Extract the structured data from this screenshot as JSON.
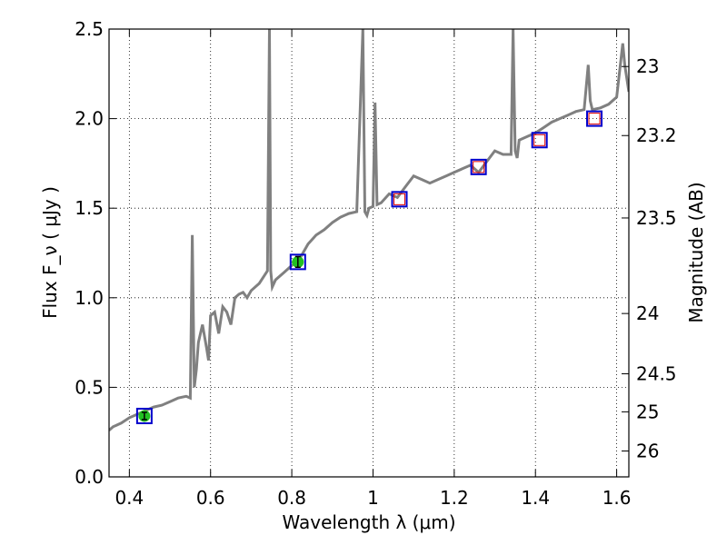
{
  "chart_data": {
    "type": "line",
    "title": "",
    "xlabel": "Wavelength  λ (μm)",
    "ylabel": "Flux  F_ν  ( μJy )",
    "ylabel_right": "Magnitude (AB)",
    "xlim": [
      0.35,
      1.63
    ],
    "ylim": [
      0.0,
      2.5
    ],
    "grid": true,
    "x_ticks": [
      {
        "value": 0.4,
        "label": "0.4"
      },
      {
        "value": 0.6,
        "label": "0.6"
      },
      {
        "value": 0.8,
        "label": "0.8"
      },
      {
        "value": 1.0,
        "label": "1"
      },
      {
        "value": 1.2,
        "label": "1.2"
      },
      {
        "value": 1.4,
        "label": "1.4"
      },
      {
        "value": 1.6,
        "label": "1.6"
      }
    ],
    "y_ticks": [
      {
        "value": 0.0,
        "label": "0.0"
      },
      {
        "value": 0.5,
        "label": "0.5"
      },
      {
        "value": 1.0,
        "label": "1.0"
      },
      {
        "value": 1.5,
        "label": "1.5"
      },
      {
        "value": 2.0,
        "label": "2.0"
      },
      {
        "value": 2.5,
        "label": "2.5"
      }
    ],
    "right_ticks": [
      {
        "value": 23,
        "label": "23"
      },
      {
        "value": 23.2,
        "label": "23.2"
      },
      {
        "value": 23.5,
        "label": "23.5"
      },
      {
        "value": 24,
        "label": "24"
      },
      {
        "value": 24.5,
        "label": "24.5"
      },
      {
        "value": 25,
        "label": "25"
      },
      {
        "value": 26,
        "label": "26"
      }
    ],
    "spectrum": {
      "color": "#808080",
      "x": [
        0.35,
        0.36,
        0.38,
        0.4,
        0.42,
        0.44,
        0.46,
        0.48,
        0.5,
        0.52,
        0.54,
        0.55,
        0.555,
        0.56,
        0.565,
        0.57,
        0.58,
        0.59,
        0.595,
        0.6,
        0.61,
        0.62,
        0.63,
        0.64,
        0.65,
        0.66,
        0.67,
        0.68,
        0.69,
        0.7,
        0.72,
        0.74,
        0.745,
        0.748,
        0.752,
        0.76,
        0.78,
        0.8,
        0.82,
        0.84,
        0.86,
        0.88,
        0.9,
        0.92,
        0.94,
        0.96,
        0.975,
        0.98,
        0.985,
        0.99,
        1.0,
        1.005,
        1.01,
        1.02,
        1.04,
        1.06,
        1.08,
        1.1,
        1.12,
        1.14,
        1.16,
        1.18,
        1.2,
        1.22,
        1.24,
        1.26,
        1.28,
        1.3,
        1.32,
        1.34,
        1.345,
        1.35,
        1.355,
        1.36,
        1.38,
        1.4,
        1.42,
        1.44,
        1.46,
        1.48,
        1.5,
        1.52,
        1.53,
        1.535,
        1.54,
        1.56,
        1.58,
        1.6,
        1.615,
        1.62,
        1.63
      ],
      "y": [
        0.26,
        0.28,
        0.3,
        0.33,
        0.35,
        0.37,
        0.39,
        0.4,
        0.42,
        0.44,
        0.45,
        0.44,
        1.35,
        0.5,
        0.6,
        0.75,
        0.85,
        0.72,
        0.65,
        0.9,
        0.92,
        0.8,
        0.95,
        0.92,
        0.85,
        1.0,
        1.02,
        1.03,
        1.0,
        1.04,
        1.08,
        1.15,
        2.5,
        1.15,
        1.06,
        1.1,
        1.14,
        1.18,
        1.22,
        1.3,
        1.35,
        1.38,
        1.42,
        1.45,
        1.47,
        1.48,
        2.5,
        1.48,
        1.46,
        1.5,
        1.51,
        2.09,
        1.52,
        1.53,
        1.58,
        1.56,
        1.62,
        1.68,
        1.66,
        1.64,
        1.66,
        1.68,
        1.7,
        1.72,
        1.74,
        1.7,
        1.76,
        1.82,
        1.8,
        1.8,
        2.5,
        1.82,
        1.78,
        1.88,
        1.9,
        1.92,
        1.95,
        1.98,
        2.0,
        2.02,
        2.04,
        2.05,
        2.3,
        2.1,
        2.05,
        2.06,
        2.08,
        2.12,
        2.42,
        2.3,
        2.15
      ]
    },
    "photometry": [
      {
        "x": 0.437,
        "y": 0.34,
        "err": 0.02,
        "observed": true
      },
      {
        "x": 0.815,
        "y": 1.2,
        "err": 0.03,
        "observed": true
      },
      {
        "x": 1.065,
        "y": 1.55,
        "observed": false
      },
      {
        "x": 1.26,
        "y": 1.73,
        "observed": false
      },
      {
        "x": 1.41,
        "y": 1.88,
        "observed": false
      },
      {
        "x": 1.545,
        "y": 2.0,
        "observed": false
      }
    ],
    "colors": {
      "observed_fill": "#22c022",
      "model_box": "#0000cc",
      "model_inner": "#dd0000",
      "grid": "#000000"
    }
  }
}
